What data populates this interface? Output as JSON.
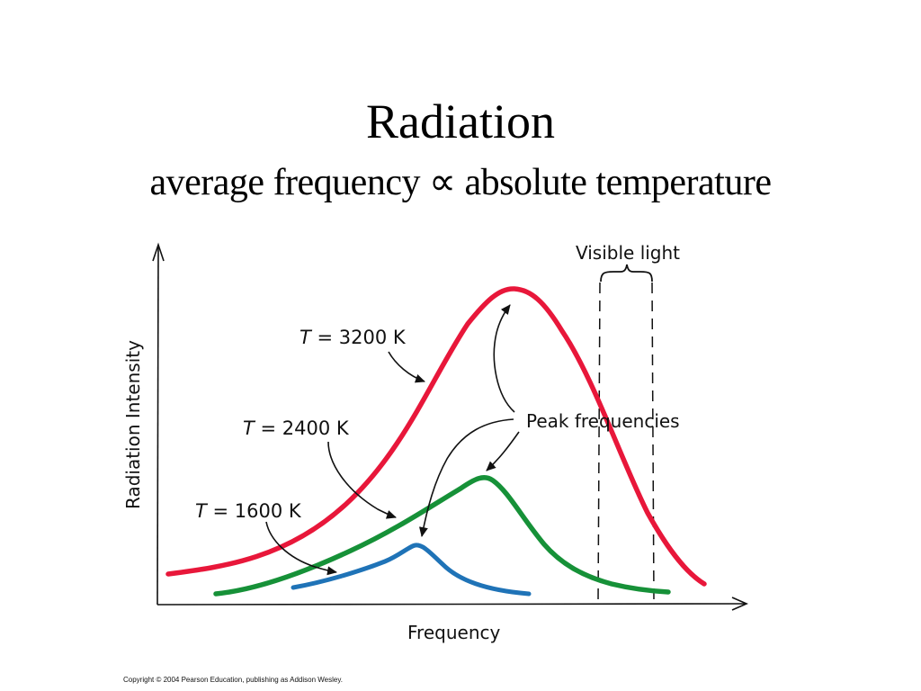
{
  "title": "Radiation",
  "subtitle": "average frequency ∝ absolute temperature",
  "diagram": {
    "x_axis_label": "Frequency",
    "y_axis_label": "Radiation Intensity",
    "visible_light_label": "Visible light",
    "peak_label": "Peak frequencies",
    "curves": [
      {
        "label_T": "T",
        "label_rest": " = 3200 K",
        "color": "#e8173a"
      },
      {
        "label_T": "T",
        "label_rest": " = 2400 K",
        "color": "#169138"
      },
      {
        "label_T": "T",
        "label_rest": " = 1600 K",
        "color": "#1f73b7"
      }
    ]
  },
  "copyright": "Copyright © 2004 Pearson Education, publishing as Addison Wesley."
}
